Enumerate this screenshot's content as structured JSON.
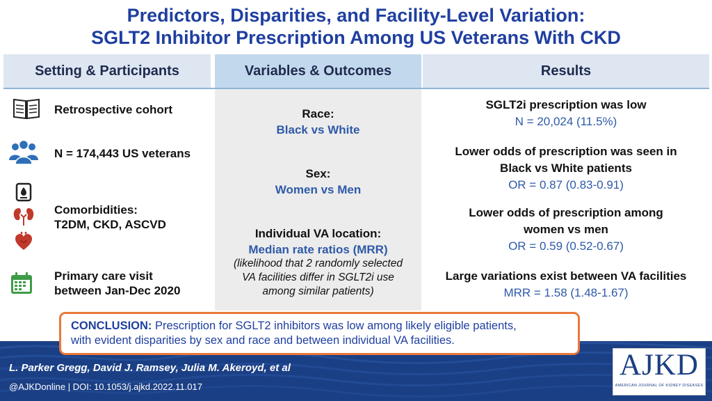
{
  "title": {
    "line1": "Predictors, Disparities, and Facility-Level Variation:",
    "line2": "SGLT2 Inhibitor Prescription Among US Veterans With CKD"
  },
  "headers": {
    "setting": "Setting & Participants",
    "variables": "Variables & Outcomes",
    "results": "Results"
  },
  "setting": {
    "cohort": "Retrospective cohort",
    "n": "N = 174,443 US veterans",
    "comorb_line1": "Comorbidities:",
    "comorb_line2": "T2DM, CKD, ASCVD",
    "visit_line1": "Primary care visit",
    "visit_line2": "between Jan-Dec 2020"
  },
  "variables": {
    "race_head": "Race:",
    "race_val": "Black vs White",
    "sex_head": "Sex:",
    "sex_val": "Women vs Men",
    "loc_head": "Individual VA location:",
    "loc_val": "Median rate ratios (MRR)",
    "loc_note1": "(likelihood that 2 randomly selected",
    "loc_note2": "VA facilities differ in SGLT2i use",
    "loc_note3": "among similar patients)"
  },
  "results": {
    "r1_head": "SGLT2i prescription was low",
    "r1_val": "N = 20,024 (11.5%)",
    "r2_head1": "Lower odds of prescription was seen in",
    "r2_head2": "Black vs White patients",
    "r2_val": "OR = 0.87 (0.83-0.91)",
    "r3_head1": "Lower odds of prescription among",
    "r3_head2": "women vs men",
    "r3_val": "OR = 0.59 (0.52-0.67)",
    "r4_head": "Large variations exist between VA facilities",
    "r4_val": "MRR = 1.58 (1.48-1.67)"
  },
  "conclusion": {
    "label": "CONCLUSION:",
    "text1": " Prescription for SGLT2 inhibitors was low among likely eligible patients,",
    "text2": "with evident disparities by sex and race and between individual VA facilities."
  },
  "footer": {
    "authors": "L. Parker Gregg, David J. Ramsey, Julia M. Akeroyd, et al",
    "doi": "@AJKDonline | DOI: 10.1053/j.ajkd.2022.11.017"
  },
  "logo": {
    "main": "AJKD",
    "sub": "AMERICAN JOURNAL OF KIDNEY DISEASES"
  },
  "icons": [
    "book-icon",
    "people-icon",
    "glucose-meter-icon",
    "kidney-icon",
    "heart-icon",
    "calendar-icon"
  ],
  "colors": {
    "title_blue": "#1f3fa0",
    "value_blue": "#2e5aa8",
    "footer_navy": "#1b3f84",
    "conclusion_border": "#e9783a",
    "icon_green": "#3f9b48",
    "icon_red": "#c0392b"
  }
}
